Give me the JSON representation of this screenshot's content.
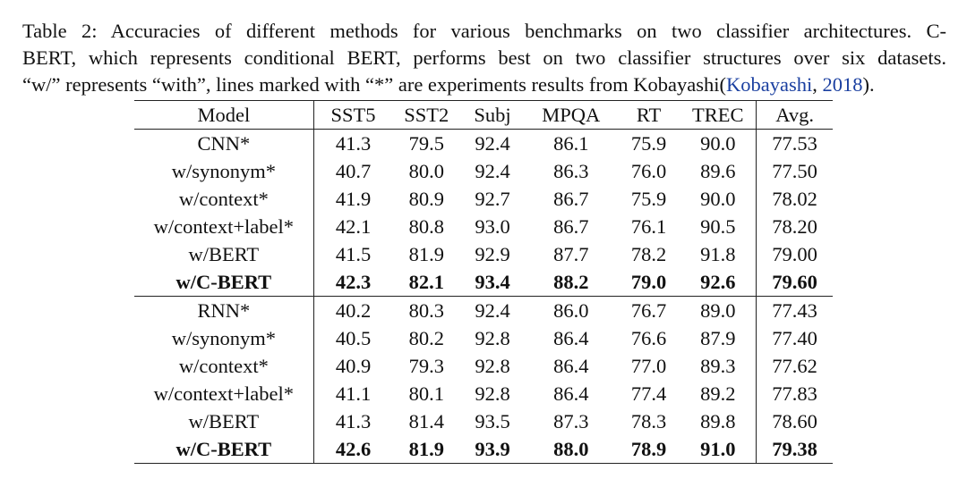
{
  "caption": {
    "lines": [
      [
        "Table 2: Accuracies of different methods for various benchmarks on two classifier architectures. C-"
      ],
      [
        "BERT, which represents conditional BERT, performs best on two classifier structures over six datasets."
      ],
      [
        "“w/” represents “with”, lines marked with “*” are experiments results from Kobayashi(",
        "Kobayashi",
        ", ",
        "2018",
        ")."
      ]
    ]
  },
  "table": {
    "header": [
      "Model",
      "SST5",
      "SST2",
      "Subj",
      "MPQA",
      "RT",
      "TREC",
      "Avg."
    ],
    "groups": [
      [
        [
          "CNN*",
          "41.3",
          "79.5",
          "92.4",
          "86.1",
          "75.9",
          "90.0",
          "77.53"
        ],
        [
          "w/synonym*",
          "40.7",
          "80.0",
          "92.4",
          "86.3",
          "76.0",
          "89.6",
          "77.50"
        ],
        [
          "w/context*",
          "41.9",
          "80.9",
          "92.7",
          "86.7",
          "75.9",
          "90.0",
          "78.02"
        ],
        [
          "w/context+label*",
          "42.1",
          "80.8",
          "93.0",
          "86.7",
          "76.1",
          "90.5",
          "78.20"
        ],
        [
          "w/BERT",
          "41.5",
          "81.9",
          "92.9",
          "87.7",
          "78.2",
          "91.8",
          "79.00"
        ],
        [
          "w/C-BERT",
          "42.3",
          "82.1",
          "93.4",
          "88.2",
          "79.0",
          "92.6",
          "79.60"
        ]
      ],
      [
        [
          "RNN*",
          "40.2",
          "80.3",
          "92.4",
          "86.0",
          "76.7",
          "89.0",
          "77.43"
        ],
        [
          "w/synonym*",
          "40.5",
          "80.2",
          "92.8",
          "86.4",
          "76.6",
          "87.9",
          "77.40"
        ],
        [
          "w/context*",
          "40.9",
          "79.3",
          "92.8",
          "86.4",
          "77.0",
          "89.3",
          "77.62"
        ],
        [
          "w/context+label*",
          "41.1",
          "80.1",
          "92.8",
          "86.4",
          "77.4",
          "89.2",
          "77.83"
        ],
        [
          "w/BERT",
          "41.3",
          "81.4",
          "93.5",
          "87.3",
          "78.3",
          "89.8",
          "78.60"
        ],
        [
          "w/C-BERT",
          "42.6",
          "81.9",
          "93.9",
          "88.0",
          "78.9",
          "91.0",
          "79.38"
        ]
      ]
    ]
  }
}
